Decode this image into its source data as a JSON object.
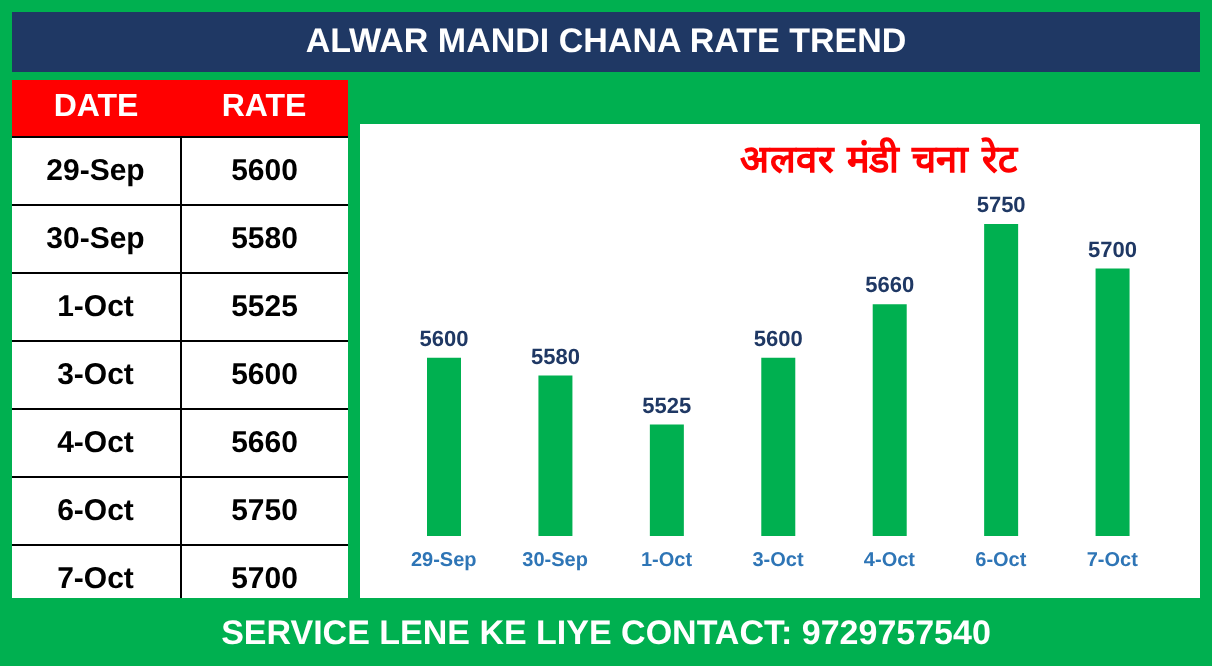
{
  "chart_data": {
    "type": "bar",
    "title": "ALWAR MANDI CHANA RATE TREND",
    "categories": [
      "29-Sep",
      "30-Sep",
      "1-Oct",
      "3-Oct",
      "4-Oct",
      "6-Oct",
      "7-Oct"
    ],
    "values": [
      5600,
      5580,
      5525,
      5600,
      5660,
      5750,
      5700
    ],
    "color": "#00b050",
    "ylim": [
      5400,
      5750
    ],
    "data_labels": true,
    "tick_labels": "x",
    "annotations": [
      "अलवर मंडी चना रेट",
      "DATE",
      "RATE",
      "5600",
      "5580",
      "5525",
      "5600",
      "5660",
      "5750",
      "5700",
      "SERVICE LENE KE LIYE CONTACT: 9729757540"
    ]
  }
}
